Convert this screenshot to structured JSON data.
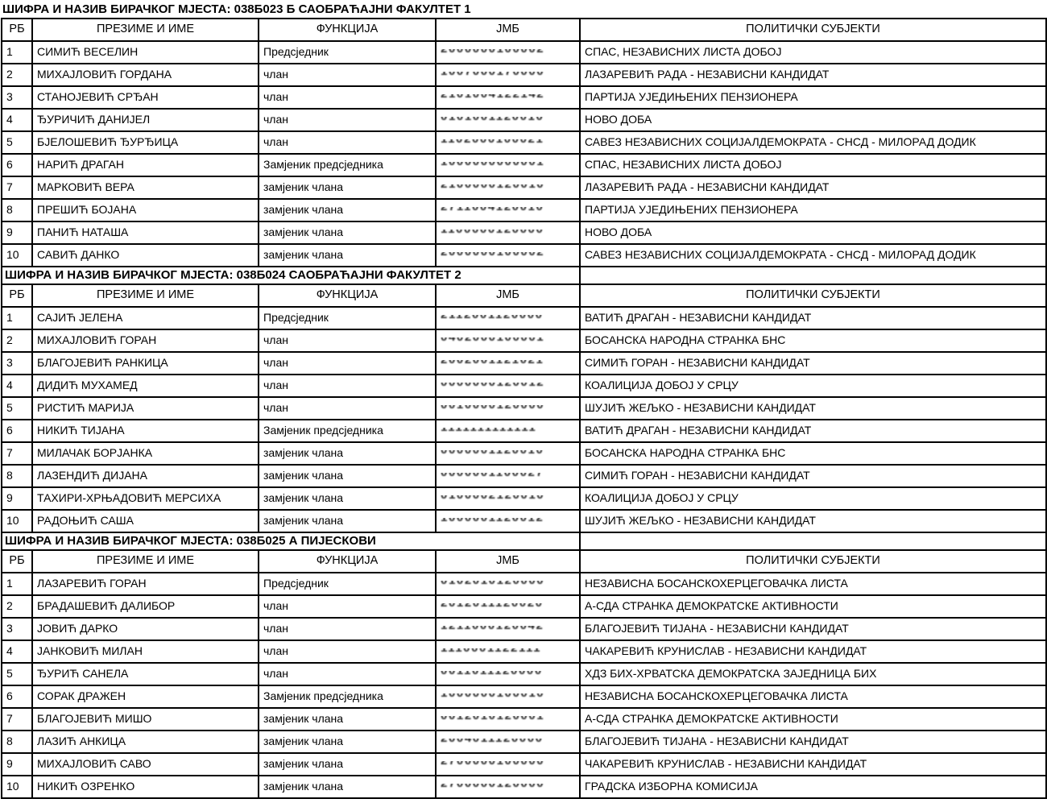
{
  "page": {
    "background_color": "#ffffff",
    "text_color": "#000000",
    "border_color": "#000000",
    "language": "sr-Cyrl"
  },
  "columns": [
    "РБ",
    "ПРЕЗИМЕ И ИМЕ",
    "ФУНКЦИЈА",
    "ЈМБ",
    "ПОЛИТИЧКИ СУБЈЕКТИ"
  ],
  "title_prefix": "ШИФРА И НАЗИВ БИРАЧКОГ МЈЕСТА:",
  "tables": [
    {
      "title": "ШИФРА И НАЗИВ БИРАЧКОГ МЈЕСТА: 038Б023 Б САОБРАЋАЈНИ ФАКУЛТЕТ 1",
      "station_code": "038Б023",
      "station_name": "Б САОБРАЋАЈНИ ФАКУЛТЕТ 1",
      "rows": [
        {
          "rb": "1",
          "name": "СИМИЋ ВЕСЕЛИН",
          "function": "Предсједник",
          "jmb_masked": "2000000100002",
          "party": "СПАС, НЕЗАВИСНИХ ЛИСТА ДОБОЈ"
        },
        {
          "rb": "2",
          "name": "МИХАЈЛОВИЋ ГОРДАНА",
          "function": "члан",
          "jmb_masked": "1007000170000",
          "party": "ЛАЗАРЕВИЋ РАДА - НЕЗАВИСНИ КАНДИДАТ"
        },
        {
          "rb": "3",
          "name": "СТАНОЈЕВИЋ СРЂАН",
          "function": "члан",
          "jmb_masked": "2101004122142",
          "party": "ПАРТИЈА УЈЕДИЊЕНИХ ПЕНЗИОНЕРА"
        },
        {
          "rb": "4",
          "name": "ЂУРИЧИЋ ДАНИЈЕЛ",
          "function": "члан",
          "jmb_masked": "0101001120010",
          "party": "НОВО ДОБА"
        },
        {
          "rb": "5",
          "name": "БЈЕЛОШЕВИЋ ЂУРЂИЦА",
          "function": "члан",
          "jmb_masked": "1102000100021",
          "party": "САВЕЗ НЕЗАВИСНИХ СОЦИЈАЛДЕМОКРАТА - СНСД - МИЛОРАД ДОДИК"
        },
        {
          "rb": "6",
          "name": "НАРИЋ ДРАГАН",
          "function": "Замјеник предсједника",
          "jmb_masked": "1000000000001",
          "party": "СПАС, НЕЗАВИСНИХ ЛИСТА ДОБОЈ"
        },
        {
          "rb": "7",
          "name": "МАРКОВИЋ ВЕРА",
          "function": "замјеник члана",
          "jmb_masked": "2100000120010",
          "party": "ЛАЗАРЕВИЋ РАДА - НЕЗАВИСНИ КАНДИДАТ"
        },
        {
          "rb": "8",
          "name": "ПРЕШИЋ БОЈАНА",
          "function": "замјеник члана",
          "jmb_masked": "2711004120010",
          "party": "ПАРТИЈА УЈЕДИЊЕНИХ ПЕНЗИОНЕРА"
        },
        {
          "rb": "9",
          "name": "ПАНИЋ НАТАША",
          "function": "замјеник члана",
          "jmb_masked": "1100000120000",
          "party": "НОВО ДОБА"
        },
        {
          "rb": "10",
          "name": "САВИЋ ДАНКО",
          "function": "замјеник члана",
          "jmb_masked": "2000000100002",
          "party": "САВЕЗ НЕЗАВИСНИХ СОЦИЈАЛДЕМОКРАТА - СНСД - МИЛОРАД ДОДИК"
        }
      ]
    },
    {
      "title": "ШИФРА И НАЗИВ БИРАЧКОГ МЈЕСТА: 038Б024 САОБРАЋАЈНИ ФАКУЛТЕТ 2",
      "station_code": "038Б024",
      "station_name": "САОБРАЋАЈНИ ФАКУЛТЕТ 2",
      "rows": [
        {
          "rb": "1",
          "name": "САЈИЋ ЈЕЛЕНА",
          "function": "Предсједник",
          "jmb_masked": "2112001120000",
          "party": "ВАТИЋ ДРАГАН - НЕЗАВИСНИ КАНДИДАТ"
        },
        {
          "rb": "2",
          "name": "МИХАЈЛОВИЋ ГОРАН",
          "function": "члан",
          "jmb_masked": "0402000100001",
          "party": "БОСАНСКА НАРОДНА СТРАНКА БНС"
        },
        {
          "rb": "3",
          "name": "БЛАГОЈЕВИЋ РАНКИЦА",
          "function": "члан",
          "jmb_masked": "2002001121021",
          "party": "СИМИЋ ГОРАН - НЕЗАВИСНИ КАНДИДАТ"
        },
        {
          "rb": "4",
          "name": "ДИДИЋ МУХАМЕД",
          "function": "члан",
          "jmb_masked": "0000000120012",
          "party": "КОАЛИЦИЈА ДОБОЈ У СРЦУ"
        },
        {
          "rb": "5",
          "name": "РИСТИЋ МАРИЈА",
          "function": "члан",
          "jmb_masked": "0010000120000",
          "party": "ШУЈИЋ ЖЕЉКО - НЕЗАВИСНИ КАНДИДАТ"
        },
        {
          "rb": "6",
          "name": "НИКИЋ ТИЈАНА",
          "function": "Замјеник предсједника",
          "jmb_masked": "1111111111111",
          "party": "ВАТИЋ ДРАГАН - НЕЗАВИСНИ КАНДИДАТ"
        },
        {
          "rb": "7",
          "name": "МИЛАЧАК БОРЈАНКА",
          "function": "замјеник члана",
          "jmb_masked": "0000001120010",
          "party": "БОСАНСКА НАРОДНА СТРАНКА БНС"
        },
        {
          "rb": "8",
          "name": "ЛАЗЕНДИЋ ДИЈАНА",
          "function": "замјеник члана",
          "jmb_masked": "0000001100027",
          "party": "СИМИЋ ГОРАН - НЕЗАВИСНИ КАНДИДАТ"
        },
        {
          "rb": "9",
          "name": "ТАХИРИ-ХРЊАДОВИЋ МЕРСИХА",
          "function": "замјеник члана",
          "jmb_masked": "0100002120010",
          "party": "КОАЛИЦИЈА ДОБОЈ У СРЦУ"
        },
        {
          "rb": "10",
          "name": "РАДОЊИЋ САША",
          "function": "замјеник члана",
          "jmb_masked": "1000001120012",
          "party": "ШУЈИЋ ЖЕЉКО - НЕЗАВИСНИ КАНДИДАТ"
        }
      ]
    },
    {
      "title": "ШИФРА И НАЗИВ БИРАЧКОГ МЈЕСТА: 038Б025 А ПИЈЕСКОВИ",
      "station_code": "038Б025",
      "station_name": "А ПИЈЕСКОВИ",
      "rows": [
        {
          "rb": "1",
          "name": "ЛАЗАРЕВИЋ ГОРАН",
          "function": "Предсједник",
          "jmb_masked": "0102010120000",
          "party": "НЕЗАВИСНА БОСАНСКОХЕРЦЕГОВАЧКА ЛИСТА"
        },
        {
          "rb": "2",
          "name": "БРАДАШЕВИЋ ДАЛИБОР",
          "function": "члан",
          "jmb_masked": "2012011120020",
          "party": "А-СДА СТРАНКА ДЕМОКРАТСКЕ АКТИВНОСТИ"
        },
        {
          "rb": "3",
          "name": "ЈОВИЋ ДАРКО",
          "function": "члан",
          "jmb_masked": "1211000120042",
          "party": "БЛАГОЈЕВИЋ ТИЈАНА - НЕЗАВИСНИ КАНДИДАТ"
        },
        {
          "rb": "4",
          "name": "ЈАНКОВИЋ МИЛАН",
          "function": "члан",
          "jmb_masked": "1110001122111",
          "party": "ЧАКАРЕВИЋ КРУНИСЛАВ - НЕЗАВИСНИ КАНДИДАТ"
        },
        {
          "rb": "5",
          "name": "ЂУРИЋ САНЕЛА",
          "function": "члан",
          "jmb_masked": "0011011120000",
          "party": "ХДЗ БИХ-ХРВАТСКА ДЕМОКРАТСКА ЗАЈЕДНИЦА БИХ"
        },
        {
          "rb": "6",
          "name": "СОРАК ДРАЖЕН",
          "function": "Замјеник предсједника",
          "jmb_masked": "1000000100010",
          "party": "НЕЗАВИСНА БОСАНСКОХЕРЦЕГОВАЧКА ЛИСТА"
        },
        {
          "rb": "7",
          "name": "БЛАГОЈЕВИЋ МИШО",
          "function": "замјеник члана",
          "jmb_masked": "0012010120001",
          "party": "А-СДА СТРАНКА ДЕМОКРАТСКЕ АКТИВНОСТИ"
        },
        {
          "rb": "8",
          "name": "ЛАЗИЋ АНКИЦА",
          "function": "замјеник члана",
          "jmb_masked": "2004011120000",
          "party": "БЛАГОЈЕВИЋ ТИЈАНА - НЕЗАВИСНИ КАНДИДАТ"
        },
        {
          "rb": "9",
          "name": "МИХАЈЛОВИЋ САВО",
          "function": "замјеник члана",
          "jmb_masked": "2700000100000",
          "party": "ЧАКАРЕВИЋ КРУНИСЛАВ - НЕЗАВИСНИ КАНДИДАТ"
        },
        {
          "rb": "10",
          "name": "НИКИЋ ОЗРЕНКО",
          "function": "замјеник члана",
          "jmb_masked": "2700000120000",
          "party": "ГРАДСКА ИЗБОРНА КОМИСИЈА"
        }
      ]
    }
  ]
}
